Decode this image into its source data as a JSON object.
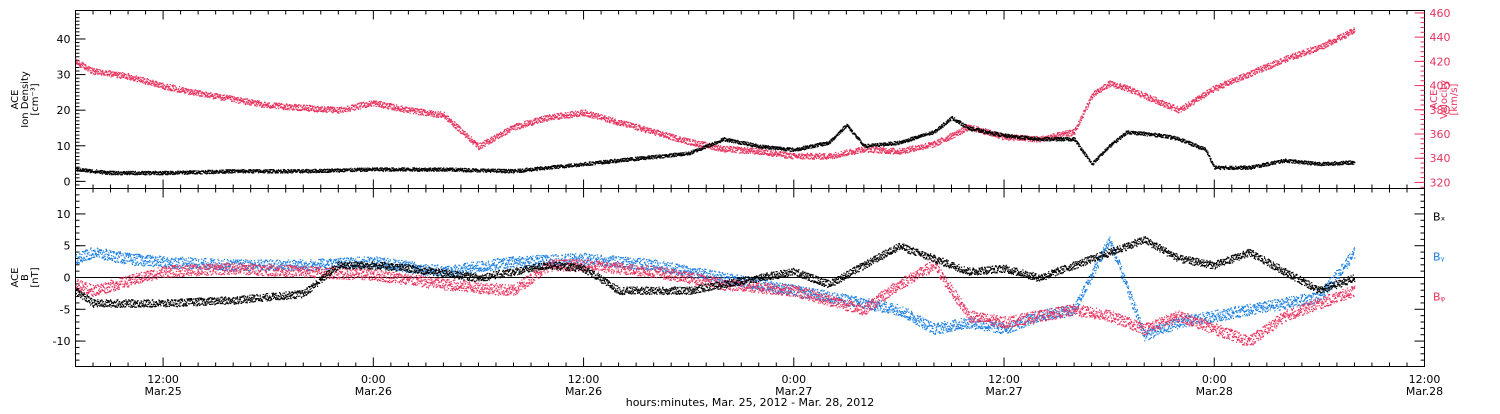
{
  "colors": {
    "black": "#000000",
    "pink": "#e8325e",
    "blue": "#1a7fe0"
  },
  "time_axis": {
    "start": "2012-03-25T07:00",
    "end": "2012-03-28T12:00",
    "ticks": [
      {
        "time": "2012-03-25T12:00",
        "hm": "12:00",
        "date": "Mar.25"
      },
      {
        "time": "2012-03-26T00:00",
        "hm": "0:00",
        "date": "Mar.26"
      },
      {
        "time": "2012-03-26T12:00",
        "hm": "12:00",
        "date": "Mar.26"
      },
      {
        "time": "2012-03-27T00:00",
        "hm": "0:00",
        "date": "Mar.27"
      },
      {
        "time": "2012-03-27T12:00",
        "hm": "12:00",
        "date": "Mar.27"
      },
      {
        "time": "2012-03-28T00:00",
        "hm": "0:00",
        "date": "Mar.28"
      },
      {
        "time": "2012-03-28T12:00",
        "hm": "12:00",
        "date": "Mar.28"
      }
    ],
    "xlabel": "hours:minutes, Mar. 25, 2012 - Mar. 28, 2012"
  },
  "chart_data": [
    {
      "type": "scatter",
      "panel": "plasma",
      "left_axis": {
        "ylabel_lines": [
          "ACE",
          "Ion Density",
          "[cm⁻³]"
        ],
        "ylim": [
          -2,
          48
        ],
        "ticks": [
          "0",
          "10",
          "20",
          "30",
          "40"
        ]
      },
      "right_axis": {
        "ylabel_lines": [
          "ACE",
          "Velocity",
          "[km/s]"
        ],
        "ylim": [
          315,
          462
        ],
        "ticks": [
          "320",
          "340",
          "360",
          "380",
          "400",
          "420",
          "440",
          "460"
        ]
      },
      "series": [
        {
          "axis": "left",
          "color": "black",
          "points": [
            [
              "2012-03-25T07:00",
              3.5
            ],
            [
              "2012-03-25T09:00",
              2.5
            ],
            [
              "2012-03-25T12:00",
              2.5
            ],
            [
              "2012-03-25T16:00",
              3.0
            ],
            [
              "2012-03-25T20:00",
              3.0
            ],
            [
              "2012-03-26T00:00",
              3.5
            ],
            [
              "2012-03-26T04:00",
              3.5
            ],
            [
              "2012-03-26T08:00",
              3.0
            ],
            [
              "2012-03-26T12:00",
              5.0
            ],
            [
              "2012-03-26T16:00",
              7.0
            ],
            [
              "2012-03-26T18:00",
              8.0
            ],
            [
              "2012-03-26T20:00",
              12.0
            ],
            [
              "2012-03-26T22:00",
              10.0
            ],
            [
              "2012-03-27T00:00",
              9.0
            ],
            [
              "2012-03-27T02:00",
              11.0
            ],
            [
              "2012-03-27T03:00",
              16.0
            ],
            [
              "2012-03-27T04:00",
              10.0
            ],
            [
              "2012-03-27T06:00",
              11.0
            ],
            [
              "2012-03-27T08:00",
              14.0
            ],
            [
              "2012-03-27T09:00",
              18.0
            ],
            [
              "2012-03-27T10:00",
              15.0
            ],
            [
              "2012-03-27T12:00",
              13.0
            ],
            [
              "2012-03-27T14:00",
              12.0
            ],
            [
              "2012-03-27T16:00",
              12.0
            ],
            [
              "2012-03-27T17:00",
              5.0
            ],
            [
              "2012-03-27T18:00",
              10.0
            ],
            [
              "2012-03-27T19:00",
              14.0
            ],
            [
              "2012-03-27T21:00",
              13.0
            ],
            [
              "2012-03-27T22:00",
              12.0
            ],
            [
              "2012-03-27T23:30",
              9.0
            ],
            [
              "2012-03-28T00:00",
              4.0
            ],
            [
              "2012-03-28T02:00",
              4.0
            ],
            [
              "2012-03-28T04:00",
              6.0
            ],
            [
              "2012-03-28T06:00",
              5.0
            ],
            [
              "2012-03-28T08:00",
              5.5
            ]
          ]
        },
        {
          "axis": "right",
          "color": "pink",
          "points": [
            [
              "2012-03-25T07:00",
              420
            ],
            [
              "2012-03-25T08:00",
              412
            ],
            [
              "2012-03-25T10:00",
              408
            ],
            [
              "2012-03-25T12:00",
              400
            ],
            [
              "2012-03-25T14:00",
              394
            ],
            [
              "2012-03-25T18:00",
              384
            ],
            [
              "2012-03-25T22:00",
              380
            ],
            [
              "2012-03-26T00:00",
              386
            ],
            [
              "2012-03-26T02:00",
              380
            ],
            [
              "2012-03-26T04:00",
              376
            ],
            [
              "2012-03-26T06:00",
              350
            ],
            [
              "2012-03-26T08:00",
              366
            ],
            [
              "2012-03-26T10:00",
              374
            ],
            [
              "2012-03-26T12:00",
              378
            ],
            [
              "2012-03-26T14:00",
              370
            ],
            [
              "2012-03-26T16:00",
              362
            ],
            [
              "2012-03-26T18:00",
              354
            ],
            [
              "2012-03-26T20:00",
              348
            ],
            [
              "2012-03-26T22:00",
              346
            ],
            [
              "2012-03-27T00:00",
              342
            ],
            [
              "2012-03-27T02:00",
              342
            ],
            [
              "2012-03-27T04:00",
              348
            ],
            [
              "2012-03-27T06:00",
              346
            ],
            [
              "2012-03-27T08:00",
              352
            ],
            [
              "2012-03-27T10:00",
              366
            ],
            [
              "2012-03-27T12:00",
              358
            ],
            [
              "2012-03-27T14:00",
              356
            ],
            [
              "2012-03-27T16:00",
              362
            ],
            [
              "2012-03-27T17:00",
              392
            ],
            [
              "2012-03-27T18:00",
              402
            ],
            [
              "2012-03-27T19:00",
              398
            ],
            [
              "2012-03-27T21:00",
              386
            ],
            [
              "2012-03-27T22:00",
              380
            ],
            [
              "2012-03-28T00:00",
              398
            ],
            [
              "2012-03-28T02:00",
              410
            ],
            [
              "2012-03-28T04:00",
              422
            ],
            [
              "2012-03-28T06:00",
              432
            ],
            [
              "2012-03-28T08:00",
              446
            ]
          ]
        }
      ]
    },
    {
      "type": "scatter",
      "panel": "imf",
      "left_axis": {
        "ylabel_lines": [
          "ACE",
          "B",
          "[nT]"
        ],
        "ylim": [
          -14,
          14
        ],
        "ticks": [
          "-10",
          "-5",
          "0",
          "5",
          "10"
        ]
      },
      "legend": [
        "Bₓ",
        "Bᵧ",
        "Bᵩ"
      ],
      "series": [
        {
          "name": "Bₓ",
          "color": "black",
          "points": [
            [
              "2012-03-25T07:00",
              -2.0
            ],
            [
              "2012-03-25T08:00",
              -4.0
            ],
            [
              "2012-03-25T12:00",
              -4.0
            ],
            [
              "2012-03-25T16:00",
              -3.5
            ],
            [
              "2012-03-25T20:00",
              -2.5
            ],
            [
              "2012-03-25T22:00",
              2.0
            ],
            [
              "2012-03-26T00:00",
              2.0
            ],
            [
              "2012-03-26T02:00",
              1.5
            ],
            [
              "2012-03-26T06:00",
              0.0
            ],
            [
              "2012-03-26T08:00",
              1.0
            ],
            [
              "2012-03-26T10:00",
              2.0
            ],
            [
              "2012-03-26T12:00",
              1.5
            ],
            [
              "2012-03-26T14:00",
              -2.0
            ],
            [
              "2012-03-26T18:00",
              -2.0
            ],
            [
              "2012-03-26T22:00",
              0.0
            ],
            [
              "2012-03-27T00:00",
              1.0
            ],
            [
              "2012-03-27T02:00",
              -1.0
            ],
            [
              "2012-03-27T04:00",
              2.0
            ],
            [
              "2012-03-27T06:00",
              5.0
            ],
            [
              "2012-03-27T08:00",
              3.0
            ],
            [
              "2012-03-27T10:00",
              1.0
            ],
            [
              "2012-03-27T12:00",
              1.5
            ],
            [
              "2012-03-27T14:00",
              0.0
            ],
            [
              "2012-03-27T16:00",
              2.0
            ],
            [
              "2012-03-27T18:00",
              4.0
            ],
            [
              "2012-03-27T20:00",
              6.0
            ],
            [
              "2012-03-27T22:00",
              3.0
            ],
            [
              "2012-03-28T00:00",
              2.0
            ],
            [
              "2012-03-28T02:00",
              4.0
            ],
            [
              "2012-03-28T04:00",
              1.0
            ],
            [
              "2012-03-28T06:00",
              -2.0
            ],
            [
              "2012-03-28T08:00",
              0.0
            ]
          ]
        },
        {
          "name": "Bᵧ",
          "color": "blue",
          "points": [
            [
              "2012-03-25T07:00",
              3.0
            ],
            [
              "2012-03-25T08:00",
              4.0
            ],
            [
              "2012-03-25T10:00",
              3.0
            ],
            [
              "2012-03-25T12:00",
              2.5
            ],
            [
              "2012-03-25T16:00",
              2.0
            ],
            [
              "2012-03-25T20:00",
              2.0
            ],
            [
              "2012-03-26T00:00",
              2.5
            ],
            [
              "2012-03-26T04:00",
              1.0
            ],
            [
              "2012-03-26T08:00",
              2.5
            ],
            [
              "2012-03-26T12:00",
              3.0
            ],
            [
              "2012-03-26T16:00",
              2.0
            ],
            [
              "2012-03-26T20:00",
              0.0
            ],
            [
              "2012-03-27T00:00",
              -2.0
            ],
            [
              "2012-03-27T04:00",
              -4.0
            ],
            [
              "2012-03-27T06:00",
              -5.0
            ],
            [
              "2012-03-27T08:00",
              -8.0
            ],
            [
              "2012-03-27T10:00",
              -7.0
            ],
            [
              "2012-03-27T12:00",
              -8.0
            ],
            [
              "2012-03-27T14:00",
              -6.0
            ],
            [
              "2012-03-27T16:00",
              -5.0
            ],
            [
              "2012-03-27T18:00",
              6.0
            ],
            [
              "2012-03-27T20:00",
              -9.0
            ],
            [
              "2012-03-27T22:00",
              -7.0
            ],
            [
              "2012-03-28T00:00",
              -6.0
            ],
            [
              "2012-03-28T02:00",
              -5.0
            ],
            [
              "2012-03-28T04:00",
              -4.0
            ],
            [
              "2012-03-28T06:00",
              -3.0
            ],
            [
              "2012-03-28T08:00",
              4.0
            ]
          ]
        },
        {
          "name": "Bᵩ",
          "color": "pink",
          "points": [
            [
              "2012-03-25T07:00",
              -1.0
            ],
            [
              "2012-03-25T08:00",
              -2.0
            ],
            [
              "2012-03-25T12:00",
              1.0
            ],
            [
              "2012-03-25T16:00",
              1.5
            ],
            [
              "2012-03-25T20:00",
              1.0
            ],
            [
              "2012-03-26T00:00",
              0.5
            ],
            [
              "2012-03-26T04:00",
              -1.0
            ],
            [
              "2012-03-26T08:00",
              -2.0
            ],
            [
              "2012-03-26T10:00",
              2.0
            ],
            [
              "2012-03-26T12:00",
              2.0
            ],
            [
              "2012-03-26T16:00",
              1.0
            ],
            [
              "2012-03-26T20:00",
              -1.0
            ],
            [
              "2012-03-27T00:00",
              -2.0
            ],
            [
              "2012-03-27T04:00",
              -5.0
            ],
            [
              "2012-03-27T06:00",
              -1.0
            ],
            [
              "2012-03-27T08:00",
              2.0
            ],
            [
              "2012-03-27T10:00",
              -6.0
            ],
            [
              "2012-03-27T12:00",
              -7.0
            ],
            [
              "2012-03-27T14:00",
              -6.0
            ],
            [
              "2012-03-27T16:00",
              -5.0
            ],
            [
              "2012-03-27T18:00",
              -6.0
            ],
            [
              "2012-03-27T20:00",
              -8.0
            ],
            [
              "2012-03-27T22:00",
              -6.0
            ],
            [
              "2012-03-28T00:00",
              -8.0
            ],
            [
              "2012-03-28T02:00",
              -10.0
            ],
            [
              "2012-03-28T04:00",
              -6.0
            ],
            [
              "2012-03-28T06:00",
              -4.0
            ],
            [
              "2012-03-28T08:00",
              -2.0
            ]
          ]
        }
      ]
    }
  ]
}
